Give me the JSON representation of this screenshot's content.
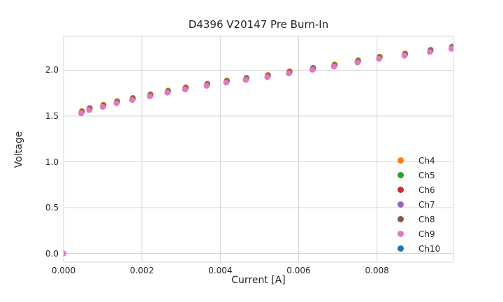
{
  "colors": {
    "background": "#ffffff",
    "grid": "#d5d5d5",
    "spine": "#d5d5d5",
    "text": "#262626"
  },
  "chart_data": {
    "type": "scatter",
    "title": "D4396 V20147 Pre Burn-In",
    "xlabel": "Current [A]",
    "ylabel": "Voltage",
    "grid": true,
    "legend_position": "lower right",
    "xlim": [
      0.0,
      0.00995
    ],
    "ylim": [
      -0.095,
      2.37
    ],
    "x_ticks": {
      "values": [
        0.0,
        0.002,
        0.004,
        0.006,
        0.008
      ],
      "labels": [
        "0.000",
        "0.002",
        "0.004",
        "0.006",
        "0.008"
      ]
    },
    "y_ticks": {
      "values": [
        0.0,
        0.5,
        1.0,
        1.5,
        2.0
      ],
      "labels": [
        "0.0",
        "0.5",
        "1.0",
        "1.5",
        "2.0"
      ]
    },
    "x": [
      0.00045,
      0.00065,
      0.001,
      0.00135,
      0.00175,
      0.0022,
      0.00265,
      0.0031,
      0.00365,
      0.00415,
      0.00465,
      0.0052,
      0.00575,
      0.00635,
      0.0069,
      0.0075,
      0.00805,
      0.0087,
      0.00935,
      0.0099
    ],
    "series": [
      {
        "name": "Ch4",
        "color": "#ff7f0e",
        "i_offset": 2e-05,
        "values": [
          1.553,
          1.588,
          1.623,
          1.663,
          1.698,
          1.738,
          1.778,
          1.813,
          1.853,
          1.888,
          1.918,
          1.948,
          1.988,
          2.028,
          2.063,
          2.108,
          2.148,
          2.183,
          2.223,
          2.258
        ]
      },
      {
        "name": "Ch5",
        "color": "#2ca02c",
        "i_offset": 1.5e-05,
        "values": [
          1.547,
          1.582,
          1.617,
          1.657,
          1.692,
          1.732,
          1.772,
          1.807,
          1.847,
          1.882,
          1.912,
          1.942,
          1.982,
          2.022,
          2.057,
          2.102,
          2.142,
          2.177,
          2.217,
          2.252
        ]
      },
      {
        "name": "Ch6",
        "color": "#d62728",
        "i_offset": 1e-05,
        "values": [
          1.541,
          1.576,
          1.611,
          1.651,
          1.686,
          1.726,
          1.766,
          1.801,
          1.841,
          1.876,
          1.906,
          1.936,
          1.976,
          2.016,
          2.051,
          2.096,
          2.136,
          2.171,
          2.211,
          2.246
        ]
      },
      {
        "name": "Ch7",
        "color": "#9467bd",
        "i_offset": 1e-05,
        "values": [
          1.538,
          1.573,
          1.608,
          1.648,
          1.683,
          1.723,
          1.763,
          1.798,
          1.838,
          1.873,
          1.903,
          1.933,
          1.973,
          2.013,
          2.048,
          2.093,
          2.133,
          2.168,
          2.208,
          2.243
        ]
      },
      {
        "name": "Ch8",
        "color": "#8c564b",
        "i_offset": 5e-06,
        "values": [
          1.534,
          1.569,
          1.604,
          1.644,
          1.679,
          1.719,
          1.759,
          1.794,
          1.834,
          1.869,
          1.899,
          1.929,
          1.969,
          2.009,
          2.044,
          2.089,
          2.129,
          2.164,
          2.204,
          2.239
        ]
      },
      {
        "name": "Ch9",
        "color": "#e377c2",
        "i_offset": 0.0,
        "values": [
          1.53,
          1.565,
          1.6,
          1.64,
          1.675,
          1.715,
          1.755,
          1.79,
          1.83,
          1.865,
          1.895,
          1.925,
          1.965,
          2.005,
          2.04,
          2.085,
          2.125,
          2.16,
          2.2,
          2.235
        ]
      },
      {
        "name": "Ch10",
        "color": "#1f77b4",
        "i_offset": 0.0,
        "values": []
      }
    ],
    "extra_points": [
      {
        "series": "Ch9",
        "x": 0.0,
        "v": 0.0
      }
    ],
    "marker_radius": 4.2
  }
}
